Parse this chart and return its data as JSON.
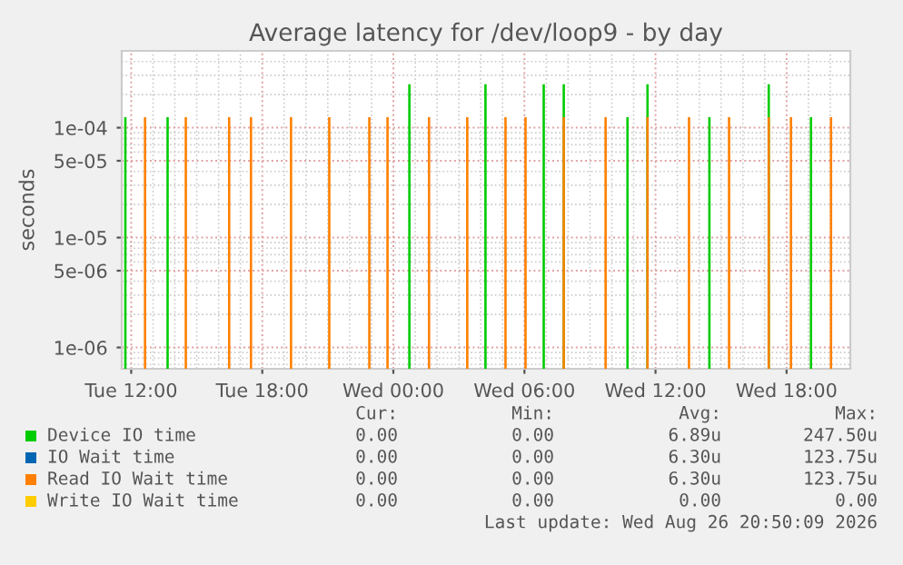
{
  "chart_data": {
    "type": "bar",
    "title": "Average latency for /dev/loop9 - by day",
    "ylabel": "seconds",
    "log": "y",
    "grid": true,
    "legend": "bottom",
    "xlim": [
      "2026-08-25T11:34",
      "2026-08-26T20:55"
    ],
    "xticks": [
      {
        "value": "2026-08-25T12:00",
        "label": "Tue 12:00"
      },
      {
        "value": "2026-08-25T18:00",
        "label": "Tue 18:00"
      },
      {
        "value": "2026-08-26T00:00",
        "label": "Wed 00:00"
      },
      {
        "value": "2026-08-26T06:00",
        "label": "Wed 06:00"
      },
      {
        "value": "2026-08-26T12:00",
        "label": "Wed 12:00"
      },
      {
        "value": "2026-08-26T18:00",
        "label": "Wed 18:00"
      }
    ],
    "ylim": [
      6.4e-07,
      0.0005
    ],
    "yticks": [
      {
        "value": 1e-06,
        "label": "1e-06"
      },
      {
        "value": 5e-06,
        "label": "5e-06"
      },
      {
        "value": 1e-05,
        "label": "1e-05"
      },
      {
        "value": 5e-05,
        "label": "5e-05"
      },
      {
        "value": 0.0001,
        "label": "1e-04"
      }
    ],
    "series": [
      {
        "name": "Device IO time",
        "color": "#00cc00",
        "x": [
          "2026-08-25T11:44",
          "2026-08-25T13:40",
          "2026-08-26T00:44",
          "2026-08-26T04:13",
          "2026-08-26T06:53",
          "2026-08-26T07:48",
          "2026-08-26T10:43",
          "2026-08-26T11:38",
          "2026-08-26T14:28",
          "2026-08-26T17:11",
          "2026-08-26T19:07"
        ],
        "values": [
          0.00012375,
          0.00012375,
          0.0002475,
          0.0002475,
          0.0002475,
          0.0002475,
          0.00012375,
          0.0002475,
          0.00012375,
          0.0002475,
          0.00012375
        ]
      },
      {
        "name": "IO Wait time",
        "color": "#0066b3"
      },
      {
        "name": "Read IO Wait time",
        "color": "#ff8000",
        "x": [
          "2026-08-25T12:38",
          "2026-08-25T14:30",
          "2026-08-25T16:29",
          "2026-08-25T17:29",
          "2026-08-25T19:19",
          "2026-08-25T21:04",
          "2026-08-25T22:54",
          "2026-08-25T23:44",
          "2026-08-26T01:38",
          "2026-08-26T03:23",
          "2026-08-26T05:08",
          "2026-08-26T06:03",
          "2026-08-26T07:48",
          "2026-08-26T09:43",
          "2026-08-26T11:38",
          "2026-08-26T13:32",
          "2026-08-26T15:22",
          "2026-08-26T17:11",
          "2026-08-26T18:12",
          "2026-08-26T20:02"
        ],
        "values": [
          0.00012375,
          0.00012375,
          0.00012375,
          0.00012375,
          0.00012375,
          0.00012375,
          0.00012375,
          0.00012375,
          0.00012375,
          0.00012375,
          0.00012375,
          0.00012375,
          0.00012375,
          0.00012375,
          0.00012375,
          0.00012375,
          0.00012375,
          0.00012375,
          0.00012375,
          0.00012375
        ]
      },
      {
        "name": "Write IO Wait time",
        "color": "#ffcc00"
      }
    ],
    "annotations": [
      "Cur:",
      "Min:",
      "Avg:",
      "Max:",
      "0.00",
      "0.00",
      "6.89u",
      "247.50u",
      "0.00",
      "0.00",
      "6.30u",
      "123.75u",
      "0.00",
      "0.00",
      "6.30u",
      "123.75u",
      "0.00",
      "0.00",
      "0.00",
      "0.00",
      "Last update: Wed Aug 26 20:50:09 2026"
    ]
  }
}
